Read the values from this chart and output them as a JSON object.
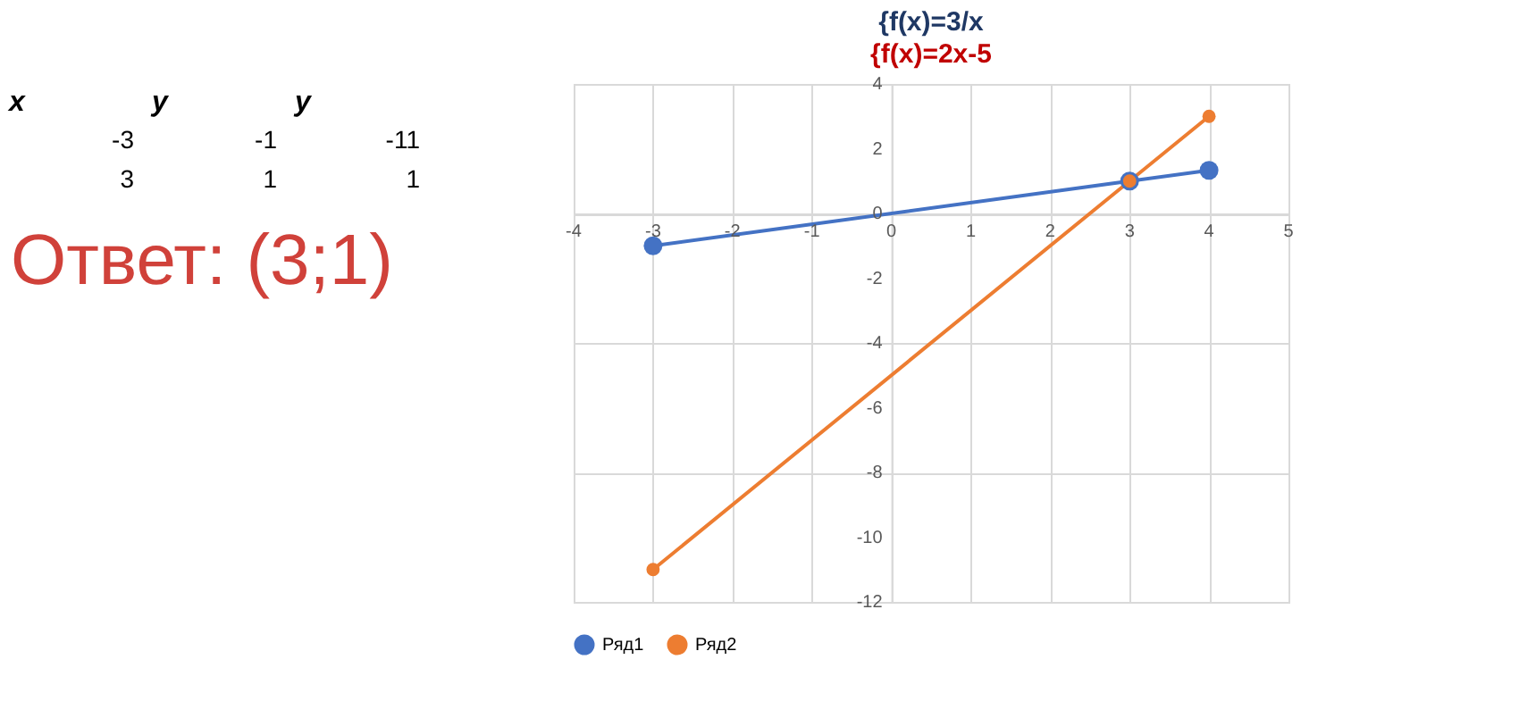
{
  "chart_data": {
    "type": "line",
    "title": "{f(x)=3/x",
    "subtitle": "{f(x)=2x-5",
    "series": [
      {
        "name": "Ряд1",
        "color": "#4472c4",
        "x": [
          -3,
          3,
          4
        ],
        "values": [
          -1,
          1,
          1.33
        ]
      },
      {
        "name": "Ряд2",
        "color": "#ed7d31",
        "x": [
          -3,
          3,
          4
        ],
        "values": [
          -11,
          1,
          3
        ]
      }
    ],
    "xlim": [
      -4,
      5
    ],
    "xticks": [
      -4,
      -3,
      -2,
      -1,
      0,
      1,
      2,
      3,
      4,
      5
    ],
    "ylim": [
      -12,
      4
    ],
    "yticks": [
      -12,
      -10,
      -8,
      -6,
      -4,
      -2,
      0,
      2,
      4
    ],
    "grid": true,
    "legend": "bottom",
    "marker": "circle",
    "line_style": "solid",
    "annotations": [
      "x",
      "y",
      "y",
      "-3",
      "-1",
      "-11",
      "3",
      "1",
      "1",
      "Ответ: (3;1)"
    ]
  }
}
